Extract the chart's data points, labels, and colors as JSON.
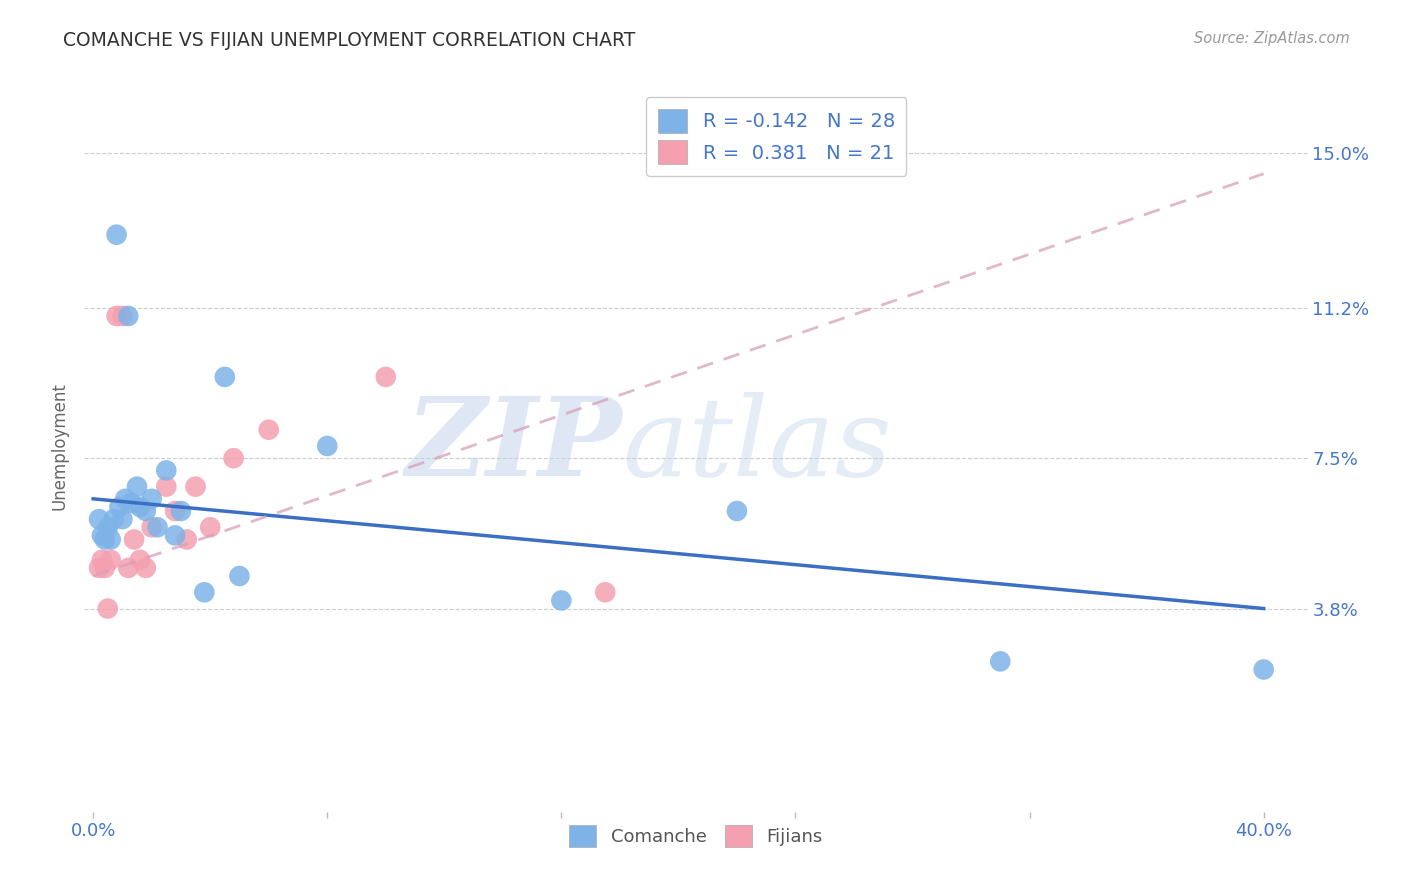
{
  "title": "COMANCHE VS FIJIAN UNEMPLOYMENT CORRELATION CHART",
  "source": "Source: ZipAtlas.com",
  "ylabel": "Unemployment",
  "comanche_color": "#7EB3E8",
  "fijian_color": "#F4A0B0",
  "comanche_R": -0.142,
  "comanche_N": 28,
  "fijian_R": 0.381,
  "fijian_N": 21,
  "regression_blue_color": "#3B6FC4",
  "regression_pink_color": "#D96080",
  "regression_pink_dashed_color": "#D8A0B8",
  "watermark_zip": "ZIP",
  "watermark_atlas": "atlas",
  "watermark_color_zip": "#C8D8F0",
  "watermark_color_atlas": "#C8D8F0",
  "ytick_positions": [
    0.038,
    0.075,
    0.112,
    0.15
  ],
  "ytick_labels": [
    "3.8%",
    "7.5%",
    "11.2%",
    "15.0%"
  ],
  "xtick_positions": [
    0.0,
    0.08,
    0.16,
    0.24,
    0.32,
    0.4
  ],
  "xtick_labels": [
    "0.0%",
    "",
    "",
    "",
    "",
    "40.0%"
  ],
  "xlim": [
    -0.003,
    0.415
  ],
  "ylim": [
    -0.012,
    0.168
  ],
  "comanche_x": [
    0.002,
    0.003,
    0.004,
    0.005,
    0.006,
    0.007,
    0.008,
    0.009,
    0.01,
    0.011,
    0.012,
    0.013,
    0.015,
    0.016,
    0.018,
    0.02,
    0.022,
    0.025,
    0.028,
    0.03,
    0.038,
    0.045,
    0.05,
    0.08,
    0.16,
    0.22,
    0.31,
    0.4
  ],
  "comanche_y": [
    0.06,
    0.056,
    0.055,
    0.058,
    0.055,
    0.06,
    0.13,
    0.063,
    0.06,
    0.065,
    0.11,
    0.064,
    0.068,
    0.063,
    0.062,
    0.065,
    0.058,
    0.072,
    0.056,
    0.062,
    0.042,
    0.095,
    0.046,
    0.078,
    0.04,
    0.062,
    0.025,
    0.023
  ],
  "fijian_x": [
    0.002,
    0.003,
    0.004,
    0.005,
    0.006,
    0.008,
    0.01,
    0.012,
    0.014,
    0.016,
    0.018,
    0.02,
    0.025,
    0.028,
    0.032,
    0.035,
    0.04,
    0.048,
    0.06,
    0.1,
    0.175
  ],
  "fijian_y": [
    0.048,
    0.05,
    0.048,
    0.038,
    0.05,
    0.11,
    0.11,
    0.048,
    0.055,
    0.05,
    0.048,
    0.058,
    0.068,
    0.062,
    0.055,
    0.068,
    0.058,
    0.075,
    0.082,
    0.095,
    0.042
  ],
  "blue_line_x0": 0.0,
  "blue_line_y0": 0.065,
  "blue_line_x1": 0.4,
  "blue_line_y1": 0.038,
  "pink_line_x0": 0.0,
  "pink_line_y0": 0.046,
  "pink_line_x1": 0.4,
  "pink_line_y1": 0.145
}
